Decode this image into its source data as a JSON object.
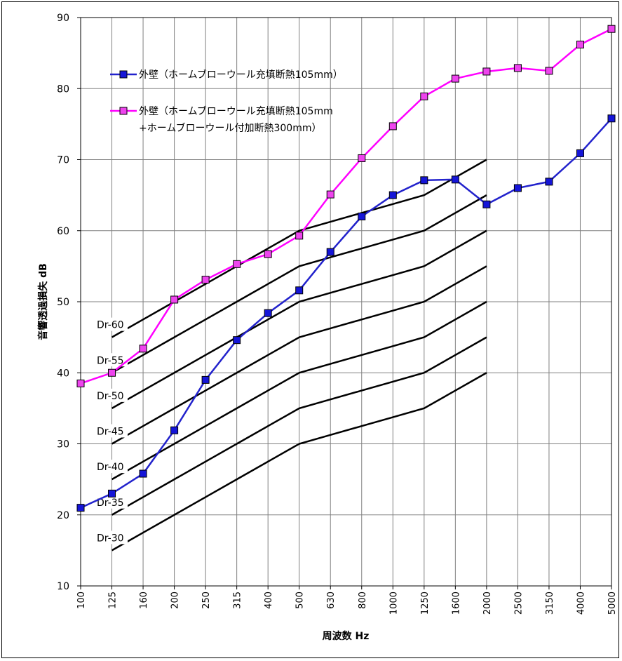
{
  "chart_data": {
    "type": "line",
    "categories": [
      "100",
      "125",
      "160",
      "200",
      "250",
      "315",
      "400",
      "500",
      "630",
      "800",
      "1000",
      "1250",
      "1600",
      "2000",
      "2500",
      "3150",
      "4000",
      "5000"
    ],
    "xlabel": "周波数 Hz",
    "ylabel": "音響透過損失 dB",
    "ylim": [
      10,
      90
    ],
    "yticks": [
      10,
      20,
      30,
      40,
      50,
      60,
      70,
      80,
      90
    ],
    "grid": true,
    "legend_position": "top-left",
    "series": [
      {
        "name": "外壁（ホームブローウール充填断熱105mm）",
        "color": "#2222cc",
        "marker_fill": "#1515d8",
        "values": [
          21,
          23,
          25.8,
          31.9,
          39,
          44.6,
          48.4,
          51.6,
          57,
          62,
          65,
          67.1,
          67.2,
          63.7,
          66,
          66.9,
          70.9,
          75.8
        ]
      },
      {
        "name": "外壁（ホームブローウール充填断熱105mm\n+ホームブローウール付加断熱300mm）",
        "color": "#ff00ff",
        "marker_fill": "#ee44ee",
        "values": [
          38.5,
          40,
          43.4,
          50.3,
          53.1,
          55.3,
          56.7,
          59.3,
          65.1,
          70.2,
          74.7,
          78.9,
          81.4,
          82.4,
          82.9,
          82.5,
          86.2,
          88.4
        ]
      }
    ],
    "reference_curves": {
      "x_categories": [
        "125",
        "160",
        "200",
        "250",
        "315",
        "400",
        "500",
        "630",
        "800",
        "1000",
        "1250",
        "1600",
        "2000"
      ],
      "color": "#000000",
      "curves": [
        {
          "label": "Dr-60",
          "values": [
            45,
            47.5,
            50,
            52.5,
            55,
            57.5,
            60,
            61.25,
            62.5,
            63.75,
            65,
            67.5,
            70
          ]
        },
        {
          "label": "Dr-55",
          "values": [
            40,
            42.5,
            45,
            47.5,
            50,
            52.5,
            55,
            56.25,
            57.5,
            58.75,
            60,
            62.5,
            65
          ]
        },
        {
          "label": "Dr-50",
          "values": [
            35,
            37.5,
            40,
            42.5,
            45,
            47.5,
            50,
            51.25,
            52.5,
            53.75,
            55,
            57.5,
            60
          ]
        },
        {
          "label": "Dr-45",
          "values": [
            30,
            32.5,
            35,
            37.5,
            40,
            42.5,
            45,
            46.25,
            47.5,
            48.75,
            50,
            52.5,
            55
          ]
        },
        {
          "label": "Dr-40",
          "values": [
            25,
            27.5,
            30,
            32.5,
            35,
            37.5,
            40,
            41.25,
            42.5,
            43.75,
            45,
            47.5,
            50
          ]
        },
        {
          "label": "Dr-35",
          "values": [
            20,
            22.5,
            25,
            27.5,
            30,
            32.5,
            35,
            36.25,
            37.5,
            38.75,
            40,
            42.5,
            45
          ]
        },
        {
          "label": "Dr-30",
          "values": [
            15,
            17.5,
            20,
            22.5,
            25,
            27.5,
            30,
            31.25,
            32.5,
            33.75,
            35,
            37.5,
            40
          ]
        }
      ]
    }
  }
}
